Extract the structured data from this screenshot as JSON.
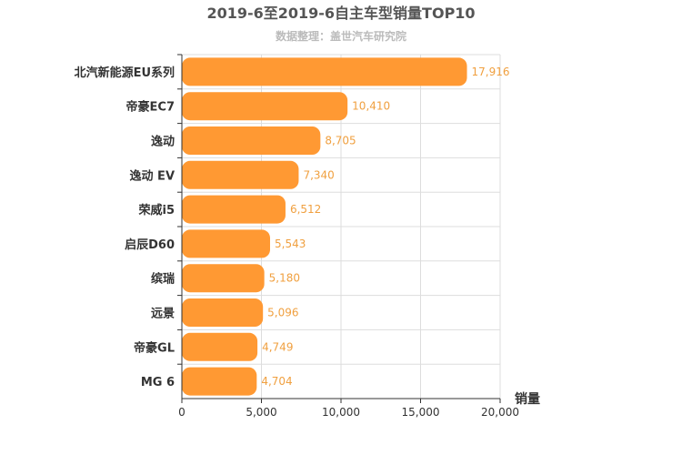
{
  "colors": {
    "bar": "#ff9933",
    "value_label": "#f0a040"
  },
  "chart_data": {
    "type": "bar",
    "orientation": "horizontal",
    "title": "2019-6至2019-6自主车型销量TOP10",
    "subtitle": "数据整理：盖世汽车研究院",
    "xlabel": "销量",
    "ylabel": "",
    "categories": [
      "北汽新能源EU系列",
      "帝豪EC7",
      "逸动",
      "逸动 EV",
      "荣威i5",
      "启辰D60",
      "缤瑞",
      "远景",
      "帝豪GL",
      "MG 6"
    ],
    "values": [
      17916,
      10410,
      8705,
      7340,
      6512,
      5543,
      5180,
      5096,
      4749,
      4704
    ],
    "value_labels": [
      "17,916",
      "10,410",
      "8,705",
      "7,340",
      "6,512",
      "5,543",
      "5,180",
      "5,096",
      "4,749",
      "4,704"
    ],
    "xlim": [
      0,
      20000
    ],
    "xticks": [
      0,
      5000,
      10000,
      15000,
      20000
    ],
    "xtick_labels": [
      "0",
      "5,000",
      "10,000",
      "15,000",
      "20,000"
    ],
    "grid": true,
    "legend": "none"
  }
}
